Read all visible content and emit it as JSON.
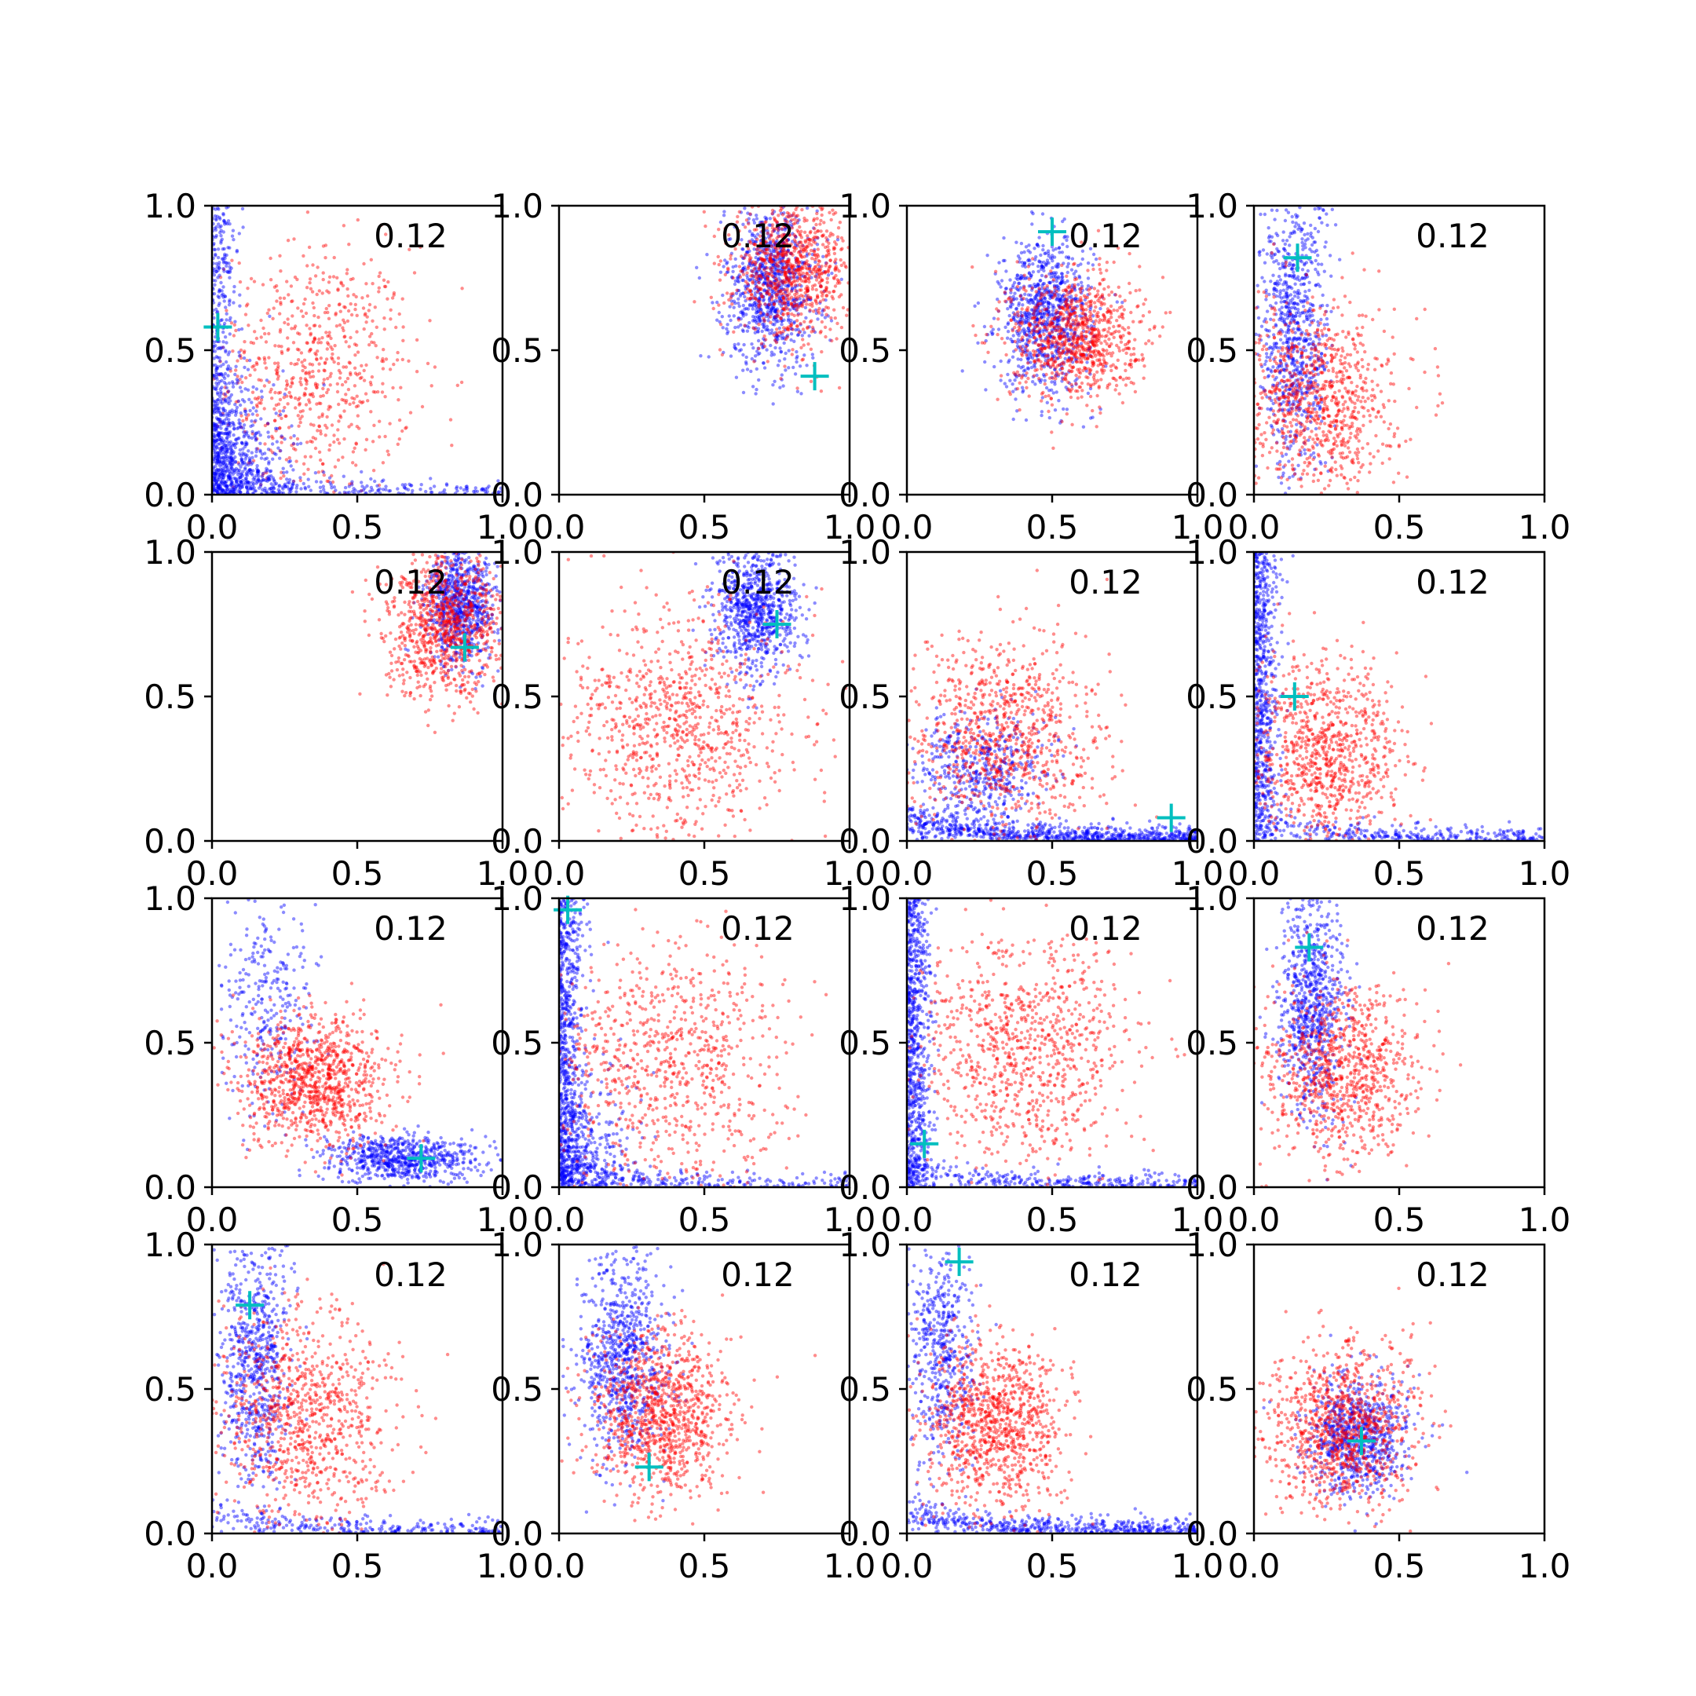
{
  "figure": {
    "grid": "4x4",
    "annotation_text": "0.12"
  },
  "colors": {
    "red": "#ff0000",
    "blue": "#0000ff",
    "marker": "#00bfbf",
    "axis": "#000000"
  },
  "chart_data": [
    {
      "type": "scatter",
      "panel": 1,
      "annotation": "0.12",
      "xlim": [
        0,
        1
      ],
      "ylim": [
        0,
        1
      ],
      "xticks": [
        "0.0",
        "0.5",
        "1.0"
      ],
      "yticks": [
        "0.0",
        "0.5",
        "1.0"
      ],
      "marker": {
        "x": 0.02,
        "y": 0.58
      },
      "clusters": [
        {
          "color": "red",
          "kind": "blob",
          "cx": 0.35,
          "cy": 0.42,
          "sx": 0.17,
          "sy": 0.22,
          "n": 700
        },
        {
          "color": "blue",
          "kind": "corner",
          "n": 600
        },
        {
          "color": "blue",
          "kind": "leftwall",
          "n": 400
        },
        {
          "color": "blue",
          "kind": "bottomtail",
          "n": 200
        }
      ]
    },
    {
      "type": "scatter",
      "panel": 2,
      "annotation": "0.12",
      "xlim": [
        0,
        1
      ],
      "ylim": [
        0,
        1
      ],
      "xticks": [
        "0.0",
        "0.5",
        "1.0"
      ],
      "yticks": [
        "0.0",
        "0.5",
        "1.0"
      ],
      "marker": {
        "x": 0.88,
        "y": 0.41
      },
      "clusters": [
        {
          "color": "blue",
          "kind": "blob",
          "cx": 0.73,
          "cy": 0.72,
          "sx": 0.08,
          "sy": 0.14,
          "n": 900
        },
        {
          "color": "red",
          "kind": "blob",
          "cx": 0.8,
          "cy": 0.78,
          "sx": 0.1,
          "sy": 0.12,
          "n": 900
        }
      ]
    },
    {
      "type": "scatter",
      "panel": 3,
      "annotation": "0.12",
      "xlim": [
        0,
        1
      ],
      "ylim": [
        0,
        1
      ],
      "xticks": [
        "0.0",
        "0.5",
        "1.0"
      ],
      "yticks": [
        "0.0",
        "0.5",
        "1.0"
      ],
      "marker": {
        "x": 0.5,
        "y": 0.91
      },
      "clusters": [
        {
          "color": "blue",
          "kind": "blob",
          "cx": 0.48,
          "cy": 0.62,
          "sx": 0.08,
          "sy": 0.13,
          "n": 900
        },
        {
          "color": "red",
          "kind": "blob",
          "cx": 0.58,
          "cy": 0.55,
          "sx": 0.11,
          "sy": 0.11,
          "n": 900
        }
      ]
    },
    {
      "type": "scatter",
      "panel": 4,
      "annotation": "0.12",
      "xlim": [
        0,
        1
      ],
      "ylim": [
        0,
        1
      ],
      "xticks": [
        "0.0",
        "0.5",
        "1.0"
      ],
      "yticks": [
        "0.0",
        "0.5",
        "1.0"
      ],
      "marker": {
        "x": 0.15,
        "y": 0.82
      },
      "clusters": [
        {
          "color": "blue",
          "kind": "blob",
          "cx": 0.14,
          "cy": 0.55,
          "sx": 0.06,
          "sy": 0.25,
          "n": 800
        },
        {
          "color": "red",
          "kind": "blob",
          "cx": 0.22,
          "cy": 0.33,
          "sx": 0.13,
          "sy": 0.16,
          "n": 900
        }
      ]
    },
    {
      "type": "scatter",
      "panel": 5,
      "annotation": "0.12",
      "xlim": [
        0,
        1
      ],
      "ylim": [
        0,
        1
      ],
      "xticks": [
        "0.0",
        "0.5",
        "1.0"
      ],
      "yticks": [
        "0.0",
        "0.5",
        "1.0"
      ],
      "marker": {
        "x": 0.87,
        "y": 0.67
      },
      "clusters": [
        {
          "color": "blue",
          "kind": "blob",
          "cx": 0.86,
          "cy": 0.82,
          "sx": 0.06,
          "sy": 0.1,
          "n": 800
        },
        {
          "color": "red",
          "kind": "blob",
          "cx": 0.8,
          "cy": 0.74,
          "sx": 0.1,
          "sy": 0.12,
          "n": 900
        }
      ]
    },
    {
      "type": "scatter",
      "panel": 6,
      "annotation": "0.12",
      "xlim": [
        0,
        1
      ],
      "ylim": [
        0,
        1
      ],
      "xticks": [
        "0.0",
        "0.5",
        "1.0"
      ],
      "yticks": [
        "0.0",
        "0.5",
        "1.0"
      ],
      "marker": {
        "x": 0.75,
        "y": 0.75
      },
      "clusters": [
        {
          "color": "blue",
          "kind": "blob",
          "cx": 0.68,
          "cy": 0.8,
          "sx": 0.07,
          "sy": 0.11,
          "n": 800
        },
        {
          "color": "red",
          "kind": "blob",
          "cx": 0.42,
          "cy": 0.4,
          "sx": 0.2,
          "sy": 0.2,
          "n": 900
        }
      ]
    },
    {
      "type": "scatter",
      "panel": 7,
      "annotation": "0.12",
      "xlim": [
        0,
        1
      ],
      "ylim": [
        0,
        1
      ],
      "xticks": [
        "0.0",
        "0.5",
        "1.0"
      ],
      "yticks": [
        "0.0",
        "0.5",
        "1.0"
      ],
      "marker": {
        "x": 0.91,
        "y": 0.08
      },
      "clusters": [
        {
          "color": "blue",
          "kind": "bottomtail",
          "n": 700
        },
        {
          "color": "blue",
          "kind": "blob",
          "cx": 0.25,
          "cy": 0.25,
          "sx": 0.12,
          "sy": 0.1,
          "n": 500
        },
        {
          "color": "red",
          "kind": "blob",
          "cx": 0.33,
          "cy": 0.35,
          "sx": 0.17,
          "sy": 0.18,
          "n": 900
        }
      ]
    },
    {
      "type": "scatter",
      "panel": 8,
      "annotation": "0.12",
      "xlim": [
        0,
        1
      ],
      "ylim": [
        0,
        1
      ],
      "xticks": [
        "0.0",
        "0.5",
        "1.0"
      ],
      "yticks": [
        "0.0",
        "0.5",
        "1.0"
      ],
      "marker": {
        "x": 0.14,
        "y": 0.5
      },
      "clusters": [
        {
          "color": "blue",
          "kind": "leftwall",
          "n": 700
        },
        {
          "color": "blue",
          "kind": "bottomtail",
          "n": 300
        },
        {
          "color": "red",
          "kind": "blob",
          "cx": 0.25,
          "cy": 0.3,
          "sx": 0.13,
          "sy": 0.16,
          "n": 900
        }
      ]
    },
    {
      "type": "scatter",
      "panel": 9,
      "annotation": "0.12",
      "xlim": [
        0,
        1
      ],
      "ylim": [
        0,
        1
      ],
      "xticks": [
        "0.0",
        "0.5",
        "1.0"
      ],
      "yticks": [
        "0.0",
        "0.5",
        "1.0"
      ],
      "marker": {
        "x": 0.72,
        "y": 0.1
      },
      "clusters": [
        {
          "color": "blue",
          "kind": "blob",
          "cx": 0.65,
          "cy": 0.1,
          "sx": 0.13,
          "sy": 0.04,
          "n": 700
        },
        {
          "color": "blue",
          "kind": "blob",
          "cx": 0.2,
          "cy": 0.65,
          "sx": 0.08,
          "sy": 0.2,
          "n": 300
        },
        {
          "color": "red",
          "kind": "blob",
          "cx": 0.35,
          "cy": 0.37,
          "sx": 0.13,
          "sy": 0.11,
          "n": 1000
        }
      ]
    },
    {
      "type": "scatter",
      "panel": 10,
      "annotation": "0.12",
      "xlim": [
        0,
        1
      ],
      "ylim": [
        0,
        1
      ],
      "xticks": [
        "0.0",
        "0.5",
        "1.0"
      ],
      "yticks": [
        "0.0",
        "0.5",
        "1.0"
      ],
      "marker": {
        "x": 0.03,
        "y": 0.96
      },
      "clusters": [
        {
          "color": "blue",
          "kind": "leftwall",
          "n": 700
        },
        {
          "color": "blue",
          "kind": "corner",
          "n": 400
        },
        {
          "color": "blue",
          "kind": "bottomtail",
          "n": 200
        },
        {
          "color": "red",
          "kind": "blob",
          "cx": 0.38,
          "cy": 0.4,
          "sx": 0.2,
          "sy": 0.22,
          "n": 800
        }
      ]
    },
    {
      "type": "scatter",
      "panel": 11,
      "annotation": "0.12",
      "xlim": [
        0,
        1
      ],
      "ylim": [
        0,
        1
      ],
      "xticks": [
        "0.0",
        "0.5",
        "1.0"
      ],
      "yticks": [
        "0.0",
        "0.5",
        "1.0"
      ],
      "marker": {
        "x": 0.06,
        "y": 0.15
      },
      "clusters": [
        {
          "color": "blue",
          "kind": "leftwall",
          "n": 800
        },
        {
          "color": "blue",
          "kind": "bottomtail",
          "n": 300
        },
        {
          "color": "red",
          "kind": "blob",
          "cx": 0.4,
          "cy": 0.48,
          "sx": 0.18,
          "sy": 0.2,
          "n": 900
        }
      ]
    },
    {
      "type": "scatter",
      "panel": 12,
      "annotation": "0.12",
      "xlim": [
        0,
        1
      ],
      "ylim": [
        0,
        1
      ],
      "xticks": [
        "0.0",
        "0.5",
        "1.0"
      ],
      "yticks": [
        "0.0",
        "0.5",
        "1.0"
      ],
      "marker": {
        "x": 0.19,
        "y": 0.83
      },
      "clusters": [
        {
          "color": "blue",
          "kind": "blob",
          "cx": 0.2,
          "cy": 0.65,
          "sx": 0.06,
          "sy": 0.2,
          "n": 800
        },
        {
          "color": "red",
          "kind": "blob",
          "cx": 0.3,
          "cy": 0.4,
          "sx": 0.13,
          "sy": 0.15,
          "n": 900
        }
      ]
    },
    {
      "type": "scatter",
      "panel": 13,
      "annotation": "0.12",
      "xlim": [
        0,
        1
      ],
      "ylim": [
        0,
        1
      ],
      "xticks": [
        "0.0",
        "0.5",
        "1.0"
      ],
      "yticks": [
        "0.0",
        "0.5",
        "1.0"
      ],
      "marker": {
        "x": 0.13,
        "y": 0.79
      },
      "clusters": [
        {
          "color": "blue",
          "kind": "blob",
          "cx": 0.15,
          "cy": 0.6,
          "sx": 0.06,
          "sy": 0.22,
          "n": 700
        },
        {
          "color": "blue",
          "kind": "bottomtail",
          "n": 250
        },
        {
          "color": "red",
          "kind": "blob",
          "cx": 0.32,
          "cy": 0.4,
          "sx": 0.15,
          "sy": 0.19,
          "n": 900
        }
      ]
    },
    {
      "type": "scatter",
      "panel": 14,
      "annotation": "0.12",
      "xlim": [
        0,
        1
      ],
      "ylim": [
        0,
        1
      ],
      "xticks": [
        "0.0",
        "0.5",
        "1.0"
      ],
      "yticks": [
        "0.0",
        "0.5",
        "1.0"
      ],
      "marker": {
        "x": 0.31,
        "y": 0.23
      },
      "clusters": [
        {
          "color": "blue",
          "kind": "blob",
          "cx": 0.22,
          "cy": 0.6,
          "sx": 0.07,
          "sy": 0.18,
          "n": 800
        },
        {
          "color": "red",
          "kind": "blob",
          "cx": 0.36,
          "cy": 0.4,
          "sx": 0.12,
          "sy": 0.14,
          "n": 1000
        }
      ]
    },
    {
      "type": "scatter",
      "panel": 15,
      "annotation": "0.12",
      "xlim": [
        0,
        1
      ],
      "ylim": [
        0,
        1
      ],
      "xticks": [
        "0.0",
        "0.5",
        "1.0"
      ],
      "yticks": [
        "0.0",
        "0.5",
        "1.0"
      ],
      "marker": {
        "x": 0.18,
        "y": 0.94
      },
      "clusters": [
        {
          "color": "blue",
          "kind": "blob",
          "cx": 0.12,
          "cy": 0.62,
          "sx": 0.06,
          "sy": 0.2,
          "n": 500
        },
        {
          "color": "blue",
          "kind": "bottomtail",
          "n": 500
        },
        {
          "color": "red",
          "kind": "blob",
          "cx": 0.3,
          "cy": 0.38,
          "sx": 0.12,
          "sy": 0.15,
          "n": 1000
        }
      ]
    },
    {
      "type": "scatter",
      "panel": 16,
      "annotation": "0.12",
      "xlim": [
        0,
        1
      ],
      "ylim": [
        0,
        1
      ],
      "xticks": [
        "0.0",
        "0.5",
        "1.0"
      ],
      "yticks": [
        "0.0",
        "0.5",
        "1.0"
      ],
      "marker": {
        "x": 0.37,
        "y": 0.32
      },
      "clusters": [
        {
          "color": "blue",
          "kind": "blob",
          "cx": 0.36,
          "cy": 0.34,
          "sx": 0.09,
          "sy": 0.1,
          "n": 800
        },
        {
          "color": "red",
          "kind": "blob",
          "cx": 0.3,
          "cy": 0.36,
          "sx": 0.13,
          "sy": 0.14,
          "n": 1000
        }
      ]
    }
  ]
}
